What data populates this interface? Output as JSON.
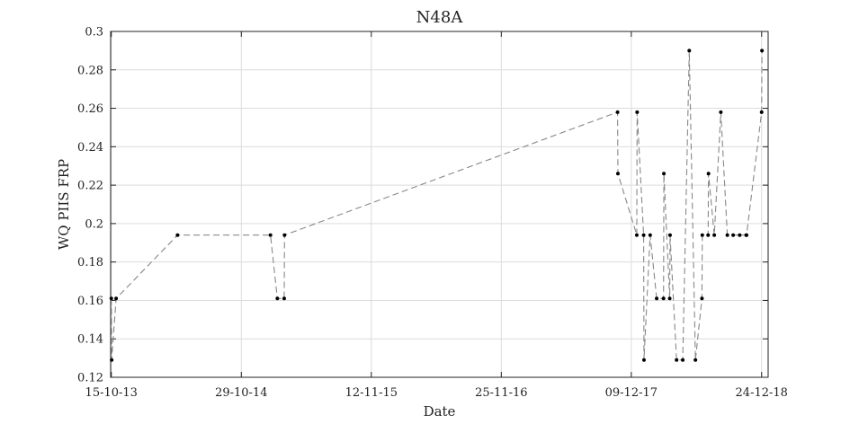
{
  "chart_data": {
    "type": "scatter",
    "title": "N48A",
    "xlabel": "Date",
    "ylabel": "WQ PIIS FRP",
    "xlim": [
      "2013-10-13",
      "2019-01-12"
    ],
    "ylim": [
      0.12,
      0.3
    ],
    "x_ticks": [
      {
        "date": "2013-10-15",
        "label": "15-10-13"
      },
      {
        "date": "2014-10-29",
        "label": "29-10-14"
      },
      {
        "date": "2015-11-12",
        "label": "12-11-15"
      },
      {
        "date": "2016-11-25",
        "label": "25-11-16"
      },
      {
        "date": "2017-12-09",
        "label": "09-12-17"
      },
      {
        "date": "2018-12-24",
        "label": "24-12-18"
      }
    ],
    "y_ticks": [
      0.12,
      0.14,
      0.16,
      0.18,
      0.2,
      0.22,
      0.24,
      0.26,
      0.28,
      0.3
    ],
    "y_tick_labels": [
      "0.12",
      "0.14",
      "0.16",
      "0.18",
      "0.2",
      "0.22",
      "0.24",
      "0.26",
      "0.28",
      "0.3"
    ],
    "grid": true,
    "line_style": "dashed",
    "line_color": "#888888",
    "marker_color": "#000000",
    "series": [
      {
        "points": [
          {
            "x": "2013-10-15",
            "y": 0.161
          },
          {
            "x": "2013-10-16",
            "y": 0.129
          },
          {
            "x": "2013-10-29",
            "y": 0.161
          },
          {
            "x": "2014-04-26",
            "y": 0.194
          },
          {
            "x": "2015-01-22",
            "y": 0.194
          },
          {
            "x": "2015-02-11",
            "y": 0.161
          },
          {
            "x": "2015-03-03",
            "y": 0.161
          },
          {
            "x": "2015-03-04",
            "y": 0.194
          },
          {
            "x": "2017-10-30",
            "y": 0.258
          },
          {
            "x": "2017-10-31",
            "y": 0.226
          },
          {
            "x": "2017-12-25",
            "y": 0.194
          },
          {
            "x": "2017-12-26",
            "y": 0.258
          },
          {
            "x": "2018-01-14",
            "y": 0.194
          },
          {
            "x": "2018-01-15",
            "y": 0.129
          },
          {
            "x": "2018-02-02",
            "y": 0.194
          },
          {
            "x": "2018-02-21",
            "y": 0.161
          },
          {
            "x": "2018-03-13",
            "y": 0.161
          },
          {
            "x": "2018-03-14",
            "y": 0.226
          },
          {
            "x": "2018-03-31",
            "y": 0.161
          },
          {
            "x": "2018-04-01",
            "y": 0.194
          },
          {
            "x": "2018-04-20",
            "y": 0.129
          },
          {
            "x": "2018-05-08",
            "y": 0.129
          },
          {
            "x": "2018-05-27",
            "y": 0.29
          },
          {
            "x": "2018-06-14",
            "y": 0.129
          },
          {
            "x": "2018-07-03",
            "y": 0.161
          },
          {
            "x": "2018-07-04",
            "y": 0.194
          },
          {
            "x": "2018-07-21",
            "y": 0.194
          },
          {
            "x": "2018-07-22",
            "y": 0.226
          },
          {
            "x": "2018-08-08",
            "y": 0.194
          },
          {
            "x": "2018-08-27",
            "y": 0.258
          },
          {
            "x": "2018-09-15",
            "y": 0.194
          },
          {
            "x": "2018-10-02",
            "y": 0.194
          },
          {
            "x": "2018-10-21",
            "y": 0.194
          },
          {
            "x": "2018-11-09",
            "y": 0.194
          },
          {
            "x": "2018-11-10",
            "y": 0.194
          },
          {
            "x": "2018-12-24",
            "y": 0.258
          },
          {
            "x": "2018-12-25",
            "y": 0.29
          }
        ]
      }
    ]
  }
}
